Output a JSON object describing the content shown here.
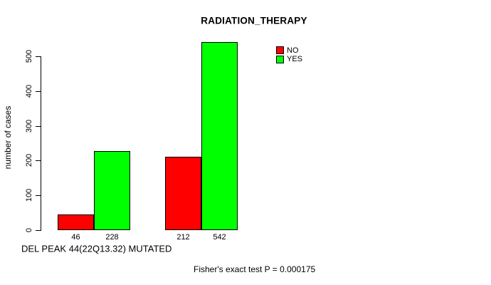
{
  "chart_data": {
    "type": "bar",
    "title": "RADIATION_THERAPY",
    "ylabel": "number of cases",
    "xlabel": "DEL PEAK 44(22Q13.32) MUTATED",
    "annotation": "Fisher's exact test P = 0.000175",
    "ylim": [
      0,
      500
    ],
    "yticks": [
      "0",
      "100",
      "200",
      "300",
      "400",
      "500"
    ],
    "ytick_values": [
      0,
      100,
      200,
      300,
      400,
      500
    ],
    "grid": false,
    "legend_position": "top-right",
    "series": [
      {
        "name": "NO",
        "color": "#ff0000"
      },
      {
        "name": "YES",
        "color": "#00ff00"
      }
    ],
    "groups": [
      {
        "values": [
          46,
          228
        ],
        "bar_labels": [
          "46",
          "228"
        ]
      },
      {
        "values": [
          212,
          542
        ],
        "bar_labels": [
          "212",
          "542"
        ]
      }
    ],
    "bar_border_color": "#000000",
    "axis_color": "#000000"
  }
}
